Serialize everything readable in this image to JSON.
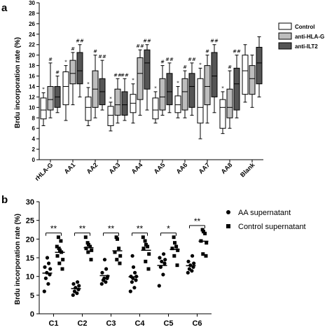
{
  "panel_a": {
    "label": "a"
  },
  "panel_b": {
    "label": "b"
  },
  "chart_data": [
    {
      "type": "box",
      "ylabel": "Brdu incorporation rate (%)",
      "ylim": [
        0,
        30
      ],
      "yticks": [
        "0",
        "2",
        "4",
        "6",
        "8",
        "10",
        "12",
        "14",
        "16",
        "18",
        "20",
        "22",
        "24",
        "26",
        "28",
        "30"
      ],
      "categories": [
        "rHLA-G",
        "AA1",
        "AA2",
        "AA3",
        "AA4",
        "AA5",
        "AA6",
        "AA7",
        "AA8",
        "Blank"
      ],
      "legend": {
        "position": "top-right"
      },
      "colors": {
        "Control": "#ffffff",
        "anti-HLA-G": "#bdbdbd",
        "anti-ILT2": "#555555"
      },
      "series": [
        {
          "name": "Control",
          "boxes": [
            [
              6.5,
              7.8,
              9.5,
              11.8,
              12.8
            ],
            [
              7.5,
              10.5,
              14.0,
              16.8,
              18.0
            ],
            [
              6.5,
              7.5,
              10.0,
              12.0,
              13.8
            ],
            [
              5.5,
              6.5,
              8.5,
              10.2,
              11.0
            ],
            [
              7.0,
              9.0,
              10.8,
              12.5,
              14.5
            ],
            [
              7.0,
              7.8,
              9.5,
              11.8,
              13.0
            ],
            [
              8.0,
              9.0,
              10.5,
              12.2,
              14.0
            ],
            [
              4.0,
              7.0,
              10.0,
              15.5,
              17.5
            ],
            [
              5.0,
              6.0,
              10.0,
              11.5,
              13.0
            ],
            [
              11.0,
              12.5,
              17.0,
              20.0,
              22.0
            ]
          ]
        },
        {
          "name": "anti-HLA-G",
          "boxes": [
            [
              8.0,
              9.5,
              11.5,
              14.0,
              18.5
            ],
            [
              10.5,
              14.5,
              16.5,
              19.0,
              20.5
            ],
            [
              8.0,
              10.0,
              13.5,
              17.0,
              20.0
            ],
            [
              7.0,
              8.5,
              10.5,
              13.5,
              15.5
            ],
            [
              8.5,
              11.5,
              16.5,
              19.5,
              21.0
            ],
            [
              8.5,
              9.5,
              12.0,
              15.5,
              18.0
            ],
            [
              8.0,
              9.5,
              13.0,
              15.5,
              17.0
            ],
            [
              7.0,
              10.5,
              14.0,
              18.0,
              20.0
            ],
            [
              6.0,
              8.0,
              10.0,
              13.5,
              17.0
            ],
            [
              10.0,
              12.5,
              15.5,
              18.0,
              20.0
            ]
          ]
        },
        {
          "name": "anti-ILT2",
          "boxes": [
            [
              9.0,
              10.0,
              12.0,
              14.0,
              16.0
            ],
            [
              12.0,
              14.5,
              17.0,
              20.5,
              22.0
            ],
            [
              9.5,
              10.5,
              13.0,
              15.5,
              19.0
            ],
            [
              7.5,
              8.5,
              10.5,
              13.0,
              15.5
            ],
            [
              9.5,
              13.5,
              18.5,
              21.0,
              22.0
            ],
            [
              9.0,
              10.5,
              13.0,
              16.5,
              18.5
            ],
            [
              8.5,
              10.0,
              14.0,
              16.5,
              18.5
            ],
            [
              9.0,
              12.0,
              16.0,
              20.5,
              22.0
            ],
            [
              8.0,
              9.5,
              14.5,
              17.5,
              20.0
            ],
            [
              12.0,
              14.5,
              18.5,
              21.5,
              23.5
            ]
          ]
        }
      ],
      "annotations": [
        {
          "category": "rHLA-G",
          "series": "Control",
          "text": "*"
        },
        {
          "category": "rHLA-G",
          "series": "anti-HLA-G",
          "text": "#"
        },
        {
          "category": "rHLA-G",
          "series": "anti-ILT2",
          "text": "#"
        },
        {
          "category": "AA1",
          "series": "Control",
          "text": "*"
        },
        {
          "category": "AA1",
          "series": "anti-HLA-G",
          "text": "#"
        },
        {
          "category": "AA1",
          "series": "anti-ILT2",
          "text": "##"
        },
        {
          "category": "AA2",
          "series": "Control",
          "text": "*"
        },
        {
          "category": "AA2",
          "series": "anti-HLA-G",
          "text": "#"
        },
        {
          "category": "AA2",
          "series": "anti-ILT2",
          "text": "##"
        },
        {
          "category": "AA3",
          "series": "Control",
          "text": "*"
        },
        {
          "category": "AA3",
          "series": "anti-HLA-G",
          "text": "##"
        },
        {
          "category": "AA3",
          "series": "anti-ILT2",
          "text": "##"
        },
        {
          "category": "AA4",
          "series": "Control",
          "text": "*"
        },
        {
          "category": "AA4",
          "series": "anti-HLA-G",
          "text": "##"
        },
        {
          "category": "AA4",
          "series": "anti-ILT2",
          "text": "##"
        },
        {
          "category": "AA5",
          "series": "Control",
          "text": "*"
        },
        {
          "category": "AA5",
          "series": "anti-HLA-G",
          "text": "#"
        },
        {
          "category": "AA5",
          "series": "anti-ILT2",
          "text": "##"
        },
        {
          "category": "AA6",
          "series": "Control",
          "text": "*"
        },
        {
          "category": "AA6",
          "series": "anti-HLA-G",
          "text": "#"
        },
        {
          "category": "AA6",
          "series": "anti-ILT2",
          "text": "##"
        },
        {
          "category": "AA7",
          "series": "Control",
          "text": "*"
        },
        {
          "category": "AA7",
          "series": "anti-HLA-G",
          "text": "#"
        },
        {
          "category": "AA7",
          "series": "anti-ILT2",
          "text": "##"
        },
        {
          "category": "AA8",
          "series": "Control",
          "text": "*"
        },
        {
          "category": "AA8",
          "series": "anti-HLA-G",
          "text": "#"
        },
        {
          "category": "AA8",
          "series": "anti-ILT2",
          "text": "##"
        }
      ]
    },
    {
      "type": "scatter",
      "ylabel": "Brdu incorporation rate (%)",
      "ylim": [
        0,
        30
      ],
      "yticks": [
        "0",
        "5",
        "10",
        "15",
        "20",
        "25",
        "30"
      ],
      "categories": [
        "C1",
        "C2",
        "C3",
        "C4",
        "C5",
        "C6"
      ],
      "legend": {
        "position": "top-right"
      },
      "series": [
        {
          "name": "AA supernatant",
          "marker": "circle",
          "points": [
            [
              6.0,
              8.0,
              9.5,
              10.5,
              11.0,
              12.0,
              12.5,
              13.5,
              15.0
            ],
            [
              5.0,
              5.5,
              6.0,
              6.5,
              7.0,
              7.5,
              8.0,
              8.5
            ],
            [
              8.0,
              8.5,
              9.0,
              9.5,
              9.5,
              10.0,
              11.0,
              12.0,
              14.5
            ],
            [
              6.0,
              7.0,
              8.5,
              9.0,
              9.5,
              10.0,
              10.0,
              11.0,
              12.5,
              15.5
            ],
            [
              7.5,
              10.5,
              12.5,
              13.5,
              14.0,
              14.5,
              15.0,
              16.0
            ],
            [
              11.0,
              11.5,
              12.0,
              12.5,
              13.0,
              13.5,
              14.0,
              15.5
            ]
          ]
        },
        {
          "name": "Control supernatant",
          "marker": "square",
          "points": [
            [
              12.0,
              13.5,
              14.5,
              15.5,
              16.5,
              17.0,
              17.5,
              18.0,
              19.5,
              20.5
            ],
            [
              14.5,
              16.5,
              17.0,
              17.5,
              18.0,
              18.5,
              19.0,
              20.5
            ],
            [
              13.5,
              14.5,
              15.5,
              16.5,
              17.5,
              20.0,
              20.5
            ],
            [
              12.0,
              14.0,
              16.0,
              17.5,
              18.0,
              18.5,
              19.5,
              20.5
            ],
            [
              13.0,
              15.5,
              17.0,
              17.5,
              18.0,
              19.0,
              20.5
            ],
            [
              15.5,
              16.0,
              19.0,
              19.5,
              21.5,
              22.0,
              22.5
            ]
          ]
        }
      ],
      "significance": [
        "**",
        "**",
        "**",
        "**",
        "*",
        "**"
      ]
    }
  ]
}
